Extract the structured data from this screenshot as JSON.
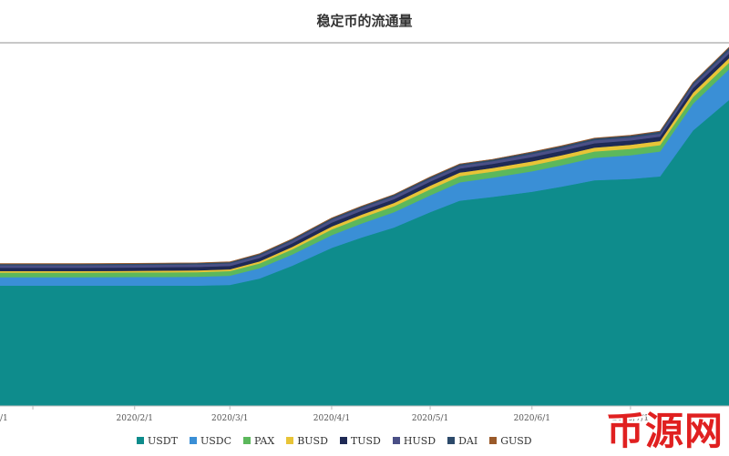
{
  "chart_data": {
    "type": "area",
    "stacked": true,
    "title": "稳定币的流通量",
    "xlabel": "",
    "ylabel": "",
    "x_tick_labels": [
      "/1",
      "2020/2/1",
      "2020/3/1",
      "2020/4/1",
      "2020/5/1",
      "2020/6/1",
      "2020/7/1"
    ],
    "x_tick_dates": [
      "2020-01-01",
      "2020-02-01",
      "2020-03-01",
      "2020-04-01",
      "2020-05-01",
      "2020-06-01",
      "2020-07-01"
    ],
    "x": [
      "2020-01-01",
      "2020-01-15",
      "2020-02-01",
      "2020-02-10",
      "2020-02-20",
      "2020-03-01",
      "2020-03-10",
      "2020-03-20",
      "2020-04-01",
      "2020-04-10",
      "2020-04-20",
      "2020-05-01",
      "2020-05-10",
      "2020-05-20",
      "2020-06-01",
      "2020-06-10",
      "2020-06-20",
      "2020-07-01",
      "2020-07-10",
      "2020-07-20",
      "2020-07-31"
    ],
    "series": [
      {
        "name": "USDT",
        "color": "#0e8c8c",
        "values": [
          4.72,
          4.72,
          4.72,
          4.72,
          4.72,
          4.75,
          5.0,
          5.5,
          6.2,
          6.6,
          7.0,
          7.6,
          8.05,
          8.2,
          8.4,
          8.6,
          8.85,
          8.9,
          9.0,
          10.8,
          12.0
        ]
      },
      {
        "name": "USDC",
        "color": "#3a8fd6",
        "values": [
          0.33,
          0.33,
          0.34,
          0.34,
          0.35,
          0.36,
          0.4,
          0.44,
          0.5,
          0.55,
          0.6,
          0.66,
          0.72,
          0.75,
          0.8,
          0.84,
          0.88,
          0.93,
          0.98,
          1.05,
          1.2
        ]
      },
      {
        "name": "PAX",
        "color": "#5cb85c",
        "values": [
          0.18,
          0.18,
          0.18,
          0.18,
          0.18,
          0.18,
          0.19,
          0.2,
          0.22,
          0.23,
          0.23,
          0.24,
          0.24,
          0.24,
          0.24,
          0.24,
          0.25,
          0.25,
          0.25,
          0.26,
          0.26
        ]
      },
      {
        "name": "BUSD",
        "color": "#e8c437",
        "values": [
          0.06,
          0.06,
          0.06,
          0.07,
          0.07,
          0.07,
          0.08,
          0.1,
          0.12,
          0.12,
          0.13,
          0.14,
          0.14,
          0.14,
          0.15,
          0.15,
          0.15,
          0.16,
          0.16,
          0.17,
          0.18
        ]
      },
      {
        "name": "TUSD",
        "color": "#1f2a55",
        "values": [
          0.13,
          0.13,
          0.13,
          0.13,
          0.13,
          0.13,
          0.13,
          0.14,
          0.15,
          0.15,
          0.15,
          0.16,
          0.16,
          0.16,
          0.17,
          0.17,
          0.17,
          0.17,
          0.17,
          0.18,
          0.18
        ]
      },
      {
        "name": "HUSD",
        "color": "#4a4f86",
        "values": [
          0.1,
          0.1,
          0.1,
          0.1,
          0.1,
          0.1,
          0.1,
          0.1,
          0.11,
          0.11,
          0.11,
          0.11,
          0.11,
          0.11,
          0.12,
          0.12,
          0.12,
          0.12,
          0.12,
          0.13,
          0.13
        ]
      },
      {
        "name": "DAI",
        "color": "#2c4a6a",
        "values": [
          0.05,
          0.05,
          0.05,
          0.05,
          0.05,
          0.05,
          0.06,
          0.06,
          0.06,
          0.06,
          0.06,
          0.06,
          0.06,
          0.06,
          0.07,
          0.07,
          0.07,
          0.07,
          0.08,
          0.08,
          0.1
        ]
      },
      {
        "name": "GUSD",
        "color": "#9a5a2a",
        "values": [
          0.01,
          0.01,
          0.01,
          0.01,
          0.01,
          0.01,
          0.01,
          0.01,
          0.01,
          0.01,
          0.01,
          0.01,
          0.01,
          0.01,
          0.01,
          0.01,
          0.01,
          0.01,
          0.01,
          0.01,
          0.01
        ]
      }
    ],
    "ylim": [
      0,
      14.2
    ],
    "xlim": [
      "2020-01-01",
      "2020-07-31"
    ],
    "grid": false,
    "legend_position": "bottom"
  },
  "watermark": {
    "text": "币源网",
    "color": "#e02020"
  }
}
